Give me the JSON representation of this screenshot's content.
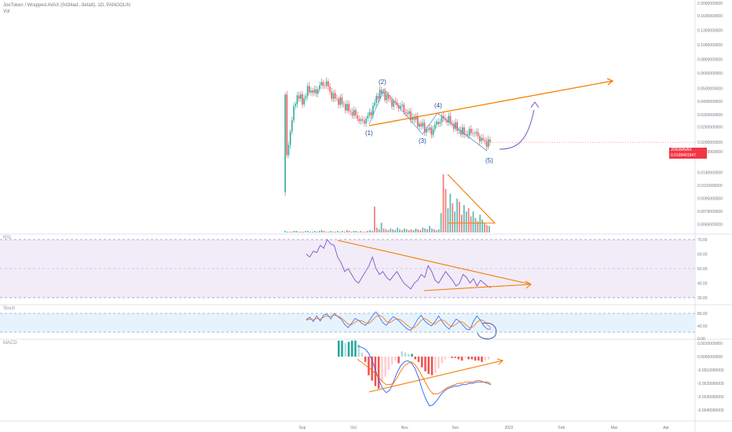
{
  "header": {
    "symbol_line": "JoeToken / Wrapped AVAX (0d34ad...8efa8), 1D, PANGOLIN",
    "volume_label": "Vol"
  },
  "price_tag": {
    "label": "JOEWAVAX",
    "value": "0.0199401947",
    "countdown": "04:46:51"
  },
  "colors": {
    "up": "#26a69a",
    "down": "#ef5350",
    "accent": "#f57c00",
    "rsi": "#7e57c2",
    "stoch_k": "#2962ff",
    "stoch_d": "#ff6d00"
  },
  "chart_data": [
    {
      "type": "candlestick",
      "title": "",
      "x_ticks": [
        "Sep",
        "Oct",
        "Nov",
        "Dec",
        "2022",
        "Feb",
        "Mar",
        "Apr"
      ],
      "y_scale": "log",
      "y_ticks": [
        "2.0000000000",
        "0.1600000000",
        "0.1300000000",
        "0.1000000000",
        "0.0800000000",
        "0.0650000000",
        "0.0500000000",
        "0.0400000000",
        "0.0320000000",
        "0.0260000000",
        "0.0200000000",
        "0.0170000000",
        "0.0140000000",
        "0.0115000000",
        "0.0095000000",
        "0.0079000000",
        "0.0065000000"
      ],
      "y_tick_values": [
        2.0,
        0.16,
        0.13,
        0.1,
        0.08,
        0.065,
        0.05,
        0.04,
        0.032,
        0.026,
        0.02,
        0.017,
        0.014,
        0.0115,
        0.0095,
        0.0079,
        0.0065
      ],
      "close_trend": [
        0.012,
        0.027,
        0.045,
        0.04,
        0.05,
        0.046,
        0.053,
        0.055,
        0.044,
        0.041,
        0.038,
        0.034,
        0.032,
        0.028,
        0.03,
        0.036,
        0.047,
        0.045,
        0.04,
        0.038,
        0.036,
        0.032,
        0.03,
        0.027,
        0.025,
        0.024,
        0.028,
        0.03,
        0.029,
        0.026,
        0.024,
        0.023,
        0.024,
        0.022,
        0.02,
        0.0199
      ],
      "wave_labels": [
        "(1)",
        "(2)",
        "(3)",
        "(4)",
        "(5)"
      ],
      "last_price": 0.0199401947
    },
    {
      "type": "bar",
      "title": "Vol",
      "values": [
        0.2,
        0.1,
        0.1,
        0.1,
        0.2,
        0.2,
        0.1,
        0.1,
        0.1,
        0.2,
        0.2,
        0.1,
        0.1,
        0.2,
        0.1,
        0.2,
        0.3,
        0.2,
        0.1,
        0.1,
        0.2,
        0.1,
        0.1,
        0.2,
        0.1,
        0.2,
        0.1,
        0.3,
        0.2,
        0.1,
        0.2,
        0.2,
        0.1,
        0.2,
        0.1,
        0.1,
        0.2,
        0.3,
        0.2,
        3.2,
        0.6,
        0.4,
        1.2,
        0.5,
        0.4,
        0.3,
        0.5,
        0.4,
        0.3,
        0.6,
        0.4,
        0.3,
        0.5,
        0.4,
        0.3,
        0.4,
        0.3,
        0.5,
        0.4,
        0.3,
        0.6,
        0.5,
        0.4,
        0.8,
        0.5,
        0.4,
        0.3,
        0.4,
        2.4,
        7.2,
        5.4,
        3.0,
        4.8,
        3.6,
        2.6,
        4.2,
        3.8,
        2.2,
        3.4,
        2.6,
        3.0,
        2.0,
        2.6,
        1.8,
        1.4,
        2.2,
        1.6,
        1.2,
        0.9,
        0.8
      ]
    },
    {
      "type": "line",
      "title": "RSI",
      "y_ticks": [
        "70.00",
        "60.00",
        "50.00",
        "40.00",
        "30.00"
      ],
      "y_tick_values": [
        70,
        60,
        50,
        40,
        30
      ],
      "band": [
        30,
        70
      ],
      "values": [
        60,
        58,
        62,
        61,
        66,
        64,
        70,
        67,
        66,
        58,
        54,
        48,
        50,
        46,
        42,
        40,
        44,
        48,
        52,
        58,
        50,
        46,
        48,
        44,
        42,
        45,
        48,
        44,
        40,
        38,
        36,
        40,
        42,
        46,
        44,
        52,
        48,
        42,
        40,
        44,
        48,
        45,
        42,
        38,
        40,
        46,
        44,
        40,
        43,
        38,
        42,
        40,
        38,
        37
      ]
    },
    {
      "type": "line",
      "title": "Stoch",
      "y_ticks": [
        "80.00",
        "40.00",
        "0.00"
      ],
      "y_tick_values": [
        80,
        40,
        0
      ],
      "band": [
        20,
        80
      ],
      "k_values": [
        60,
        68,
        54,
        72,
        56,
        75,
        78,
        62,
        80,
        70,
        62,
        45,
        35,
        48,
        64,
        58,
        48,
        42,
        55,
        72,
        85,
        68,
        50,
        42,
        58,
        70,
        62,
        52,
        40,
        30,
        26,
        42,
        62,
        74,
        56,
        46,
        40,
        55,
        72,
        54,
        40,
        30,
        45,
        62,
        55,
        42,
        30,
        28,
        55,
        72,
        58,
        40,
        30,
        30
      ],
      "d_values": [
        58,
        62,
        60,
        64,
        61,
        68,
        72,
        70,
        74,
        72,
        66,
        56,
        46,
        44,
        52,
        58,
        56,
        50,
        48,
        58,
        70,
        74,
        68,
        54,
        50,
        58,
        63,
        60,
        52,
        42,
        34,
        34,
        44,
        58,
        64,
        58,
        48,
        46,
        56,
        60,
        54,
        42,
        38,
        46,
        54,
        52,
        42,
        34,
        38,
        52,
        60,
        56,
        44,
        34
      ]
    },
    {
      "type": "bar",
      "title": "MACD",
      "y_ticks": [
        "0.0010000000",
        "0.0000000000",
        "-0.0010000000",
        "-0.0020000000",
        "-0.0030000000",
        "-0.0040000000"
      ],
      "y_tick_values": [
        0.001,
        0.0,
        -0.001,
        -0.002,
        -0.003,
        -0.004
      ],
      "histogram": [
        0.0012,
        0.0012,
        0.001,
        0.0011,
        0.0012,
        0.0012,
        0.0009,
        0.0003,
        -0.0004,
        -0.0014,
        -0.0018,
        -0.0022,
        -0.0024,
        -0.0019,
        -0.0015,
        -0.001,
        -0.0006,
        -0.0003,
        -0.0005,
        0.0004,
        0.0003,
        0.0002,
        0.0002,
        -0.0002,
        -0.0004,
        -0.0008,
        -0.0011,
        -0.0013,
        -0.0014,
        -0.0012,
        -0.0009,
        -0.0005,
        -0.0002,
        0.0,
        -0.0001,
        -0.0001,
        -0.0002,
        -0.0003,
        -0.0001,
        -0.0002,
        -0.0002,
        -0.0003,
        -0.0003,
        -0.0004,
        -0.0003,
        -0.0002
      ],
      "macd_line": [
        0.0008,
        0.0007,
        0.0006,
        0.0003,
        -0.0002,
        -0.001,
        -0.0018,
        -0.0024,
        -0.0027,
        -0.0025,
        -0.0019,
        -0.0012,
        -0.0007,
        -0.0004,
        -0.0003,
        -0.0005,
        -0.0009,
        -0.0016,
        -0.0025,
        -0.0032,
        -0.0037,
        -0.0036,
        -0.0033,
        -0.0029,
        -0.0026,
        -0.0024,
        -0.0023,
        -0.0022,
        -0.0022,
        -0.0021,
        -0.0021,
        -0.002,
        -0.002,
        -0.0019,
        -0.0019,
        -0.0019,
        -0.002,
        -0.0021
      ],
      "signal_line": [
        -0.0002,
        -0.0004,
        -0.0006,
        -0.0008,
        -0.001,
        -0.0013,
        -0.0016,
        -0.0019,
        -0.0021,
        -0.0021,
        -0.002,
        -0.0016,
        -0.0011,
        -0.0007,
        -0.0005,
        -0.0004,
        -0.0006,
        -0.001,
        -0.0015,
        -0.002,
        -0.0025,
        -0.0028,
        -0.0028,
        -0.0027,
        -0.0025,
        -0.0023,
        -0.0022,
        -0.0021,
        -0.002,
        -0.002,
        -0.0019,
        -0.0019,
        -0.0019,
        -0.0018,
        -0.0018,
        -0.0019,
        -0.0019,
        -0.002
      ]
    }
  ]
}
